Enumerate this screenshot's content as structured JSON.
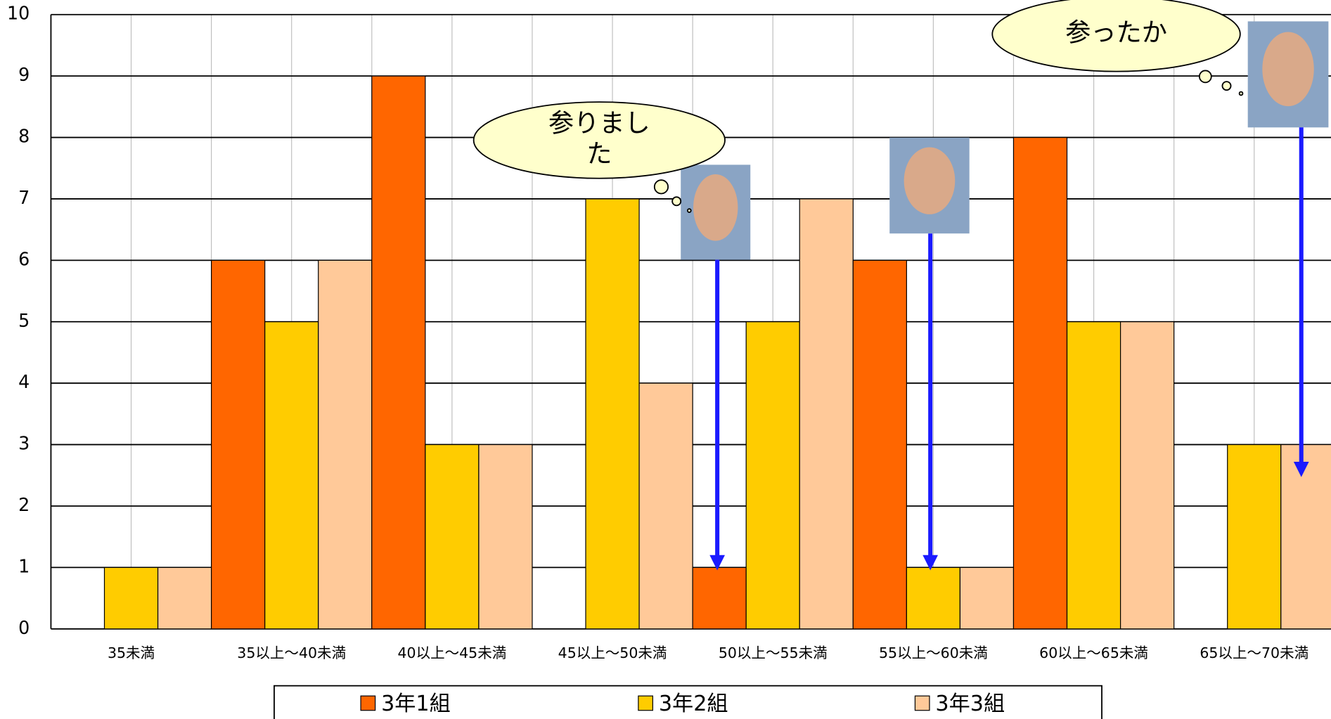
{
  "chart_data": {
    "type": "bar",
    "categories": [
      "35未満",
      "35以上～40未満",
      "40以上～45未満",
      "45以上～50未満",
      "50以上～55未満",
      "55以上～60未満",
      "60以上～65未満",
      "65以上～70未満"
    ],
    "series": [
      {
        "name": "3年1組",
        "color": "#ff6600",
        "values": [
          0,
          6,
          9,
          0,
          1,
          6,
          8,
          0
        ]
      },
      {
        "name": "3年2組",
        "color": "#ffcc00",
        "values": [
          1,
          5,
          3,
          7,
          5,
          1,
          5,
          3
        ]
      },
      {
        "name": "3年3組",
        "color": "#ffc999",
        "values": [
          1,
          6,
          3,
          4,
          7,
          1,
          5,
          3
        ]
      }
    ],
    "ylim": [
      0,
      10
    ],
    "yticks": [
      0,
      1,
      2,
      3,
      4,
      5,
      6,
      7,
      8,
      9,
      10
    ],
    "grid": true,
    "legend": "bottom",
    "annotations": [
      {
        "lines": [
          "参りまし",
          "た"
        ]
      },
      {
        "lines": [
          "参ったか"
        ]
      }
    ]
  }
}
